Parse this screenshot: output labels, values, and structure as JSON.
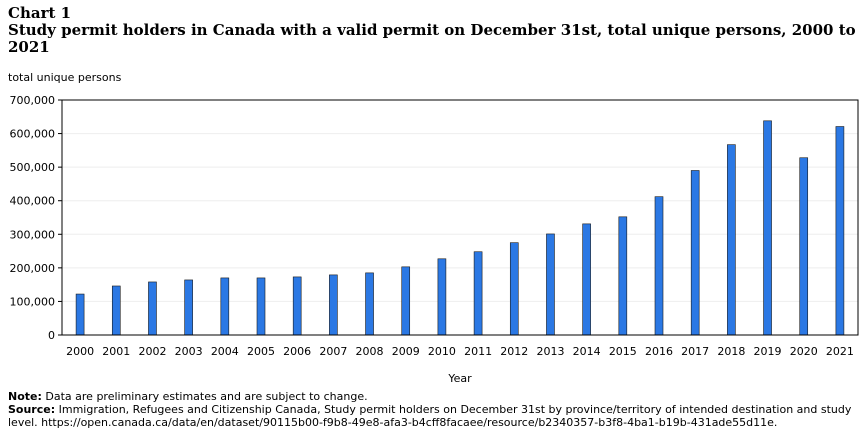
{
  "header": {
    "chart_label": "Chart 1",
    "title": "Study permit holders in Canada with a valid permit on December 31st, total unique persons, 2000 to 2021"
  },
  "chart_data": {
    "type": "bar",
    "title": "Study permit holders in Canada with a valid permit on December 31st, total unique persons, 2000 to 2021",
    "ylabel": "total unique persons",
    "xlabel": "Year",
    "categories": [
      "2000",
      "2001",
      "2002",
      "2003",
      "2004",
      "2005",
      "2006",
      "2007",
      "2008",
      "2009",
      "2010",
      "2011",
      "2012",
      "2013",
      "2014",
      "2015",
      "2016",
      "2017",
      "2018",
      "2019",
      "2020",
      "2021"
    ],
    "values": [
      122000,
      146000,
      158000,
      164000,
      170000,
      170000,
      173000,
      179000,
      185000,
      203000,
      227000,
      248000,
      275000,
      301000,
      331000,
      352000,
      412000,
      490000,
      567000,
      638000,
      528000,
      621000
    ],
    "ylim": [
      0,
      700000
    ],
    "yticks": [
      0,
      100000,
      200000,
      300000,
      400000,
      500000,
      600000,
      700000
    ],
    "ytick_labels": [
      "0",
      "100,000",
      "200,000",
      "300,000",
      "400,000",
      "500,000",
      "600,000",
      "700,000"
    ],
    "grid": true,
    "bar_color": "#2b78e4"
  },
  "notes": {
    "note_label": "Note:",
    "note_text": "Data are preliminary estimates and are subject to change.",
    "source_label": "Source:",
    "source_text": "Immigration, Refugees and Citizenship Canada, Study permit holders on December 31st by province/territory of intended destination and study level. https://open.canada.ca/data/en/dataset/90115b00-f9b8-49e8-afa3-b4cff8facaee/resource/b2340357-b3f8-4ba1-b19b-431ade55d11e."
  }
}
